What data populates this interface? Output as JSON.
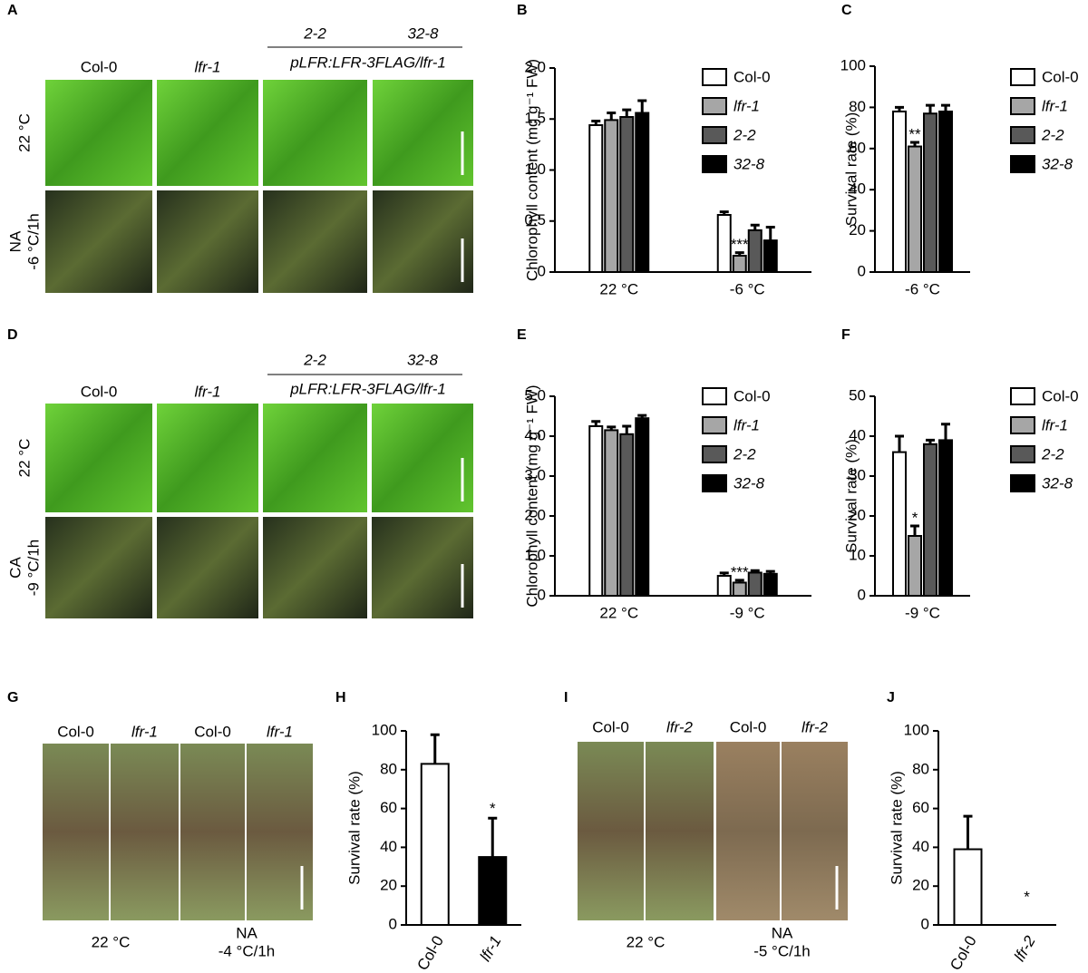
{
  "chart_data": [
    {
      "type": "bar",
      "panel": "B",
      "ylabel": "Chlorophyll content (mg g⁻¹ FW)",
      "categories": [
        "22 °C",
        "-6 °C"
      ],
      "series": [
        {
          "name": "Col-0",
          "color": "#ffffff",
          "values": [
            1.44,
            0.56
          ],
          "errors": [
            0.04,
            0.03
          ],
          "significance": [
            null,
            null
          ]
        },
        {
          "name": "lfr-1",
          "color": "#a6a6a6",
          "values": [
            1.49,
            0.16
          ],
          "errors": [
            0.07,
            0.03
          ],
          "significance": [
            null,
            "***"
          ]
        },
        {
          "name": "2-2",
          "color": "#595959",
          "values": [
            1.52,
            0.41
          ],
          "errors": [
            0.07,
            0.05
          ],
          "significance": [
            null,
            null
          ]
        },
        {
          "name": "32-8",
          "color": "#000000",
          "values": [
            1.56,
            0.31
          ],
          "errors": [
            0.12,
            0.13
          ],
          "significance": [
            null,
            null
          ]
        }
      ],
      "ylim": [
        0,
        2
      ],
      "yticks": [
        0,
        0.5,
        {
          "value": 1,
          "label": "1.0"
        },
        1.5,
        {
          "value": 2,
          "label": "2.0"
        }
      ]
    },
    {
      "type": "bar",
      "panel": "C",
      "ylabel": "Survival rate (%)",
      "categories": [
        "-6 °C"
      ],
      "series": [
        {
          "name": "Col-0",
          "color": "#ffffff",
          "values": [
            78
          ],
          "errors": [
            2
          ],
          "significance": [
            null
          ]
        },
        {
          "name": "lfr-1",
          "color": "#a6a6a6",
          "values": [
            61
          ],
          "errors": [
            2
          ],
          "significance": [
            "**"
          ]
        },
        {
          "name": "2-2",
          "color": "#595959",
          "values": [
            77
          ],
          "errors": [
            4
          ],
          "significance": [
            null
          ]
        },
        {
          "name": "32-8",
          "color": "#000000",
          "values": [
            78
          ],
          "errors": [
            3
          ],
          "significance": [
            null
          ]
        }
      ],
      "ylim": [
        0,
        100
      ],
      "yticks": [
        0,
        20,
        40,
        60,
        80,
        100
      ]
    },
    {
      "type": "bar",
      "panel": "E",
      "ylabel": "Chlorophyll content (mg g⁻¹ FW)",
      "categories": [
        "22 °C",
        "-9 °C"
      ],
      "series": [
        {
          "name": "Col-0",
          "color": "#ffffff",
          "values": [
            4.25,
            0.5
          ],
          "errors": [
            0.12,
            0.07
          ],
          "significance": [
            null,
            null
          ]
        },
        {
          "name": "lfr-1",
          "color": "#a6a6a6",
          "values": [
            4.15,
            0.33
          ],
          "errors": [
            0.08,
            0.06
          ],
          "significance": [
            null,
            "***"
          ]
        },
        {
          "name": "2-2",
          "color": "#595959",
          "values": [
            4.05,
            0.58
          ],
          "errors": [
            0.2,
            0.05
          ],
          "significance": [
            null,
            null
          ]
        },
        {
          "name": "32-8",
          "color": "#000000",
          "values": [
            4.45,
            0.55
          ],
          "errors": [
            0.07,
            0.06
          ],
          "significance": [
            null,
            null
          ]
        }
      ],
      "ylim": [
        0,
        5
      ],
      "yticks": [
        0,
        {
          "value": 1,
          "label": "1.0"
        },
        {
          "value": 2,
          "label": "2.0"
        },
        {
          "value": 3,
          "label": "3.0"
        },
        {
          "value": 4,
          "label": "4.0"
        },
        {
          "value": 5,
          "label": "5.0"
        }
      ]
    },
    {
      "type": "bar",
      "panel": "F",
      "ylabel": "Survival rate (%)",
      "categories": [
        "-9 °C"
      ],
      "series": [
        {
          "name": "Col-0",
          "color": "#ffffff",
          "values": [
            36
          ],
          "errors": [
            4
          ],
          "significance": [
            null
          ]
        },
        {
          "name": "lfr-1",
          "color": "#a6a6a6",
          "values": [
            15
          ],
          "errors": [
            2.5
          ],
          "significance": [
            "*"
          ]
        },
        {
          "name": "2-2",
          "color": "#595959",
          "values": [
            38
          ],
          "errors": [
            1
          ],
          "significance": [
            null
          ]
        },
        {
          "name": "32-8",
          "color": "#000000",
          "values": [
            39
          ],
          "errors": [
            4
          ],
          "significance": [
            null
          ]
        }
      ],
      "ylim": [
        0,
        50
      ],
      "yticks": [
        0,
        10,
        20,
        30,
        40,
        50
      ]
    },
    {
      "type": "bar",
      "panel": "H",
      "ylabel": "Survival rate (%)",
      "categories": [
        "Col-0",
        "lfr-1"
      ],
      "values": [
        83,
        35
      ],
      "errors": [
        15,
        20
      ],
      "colors": [
        "#ffffff",
        "#000000"
      ],
      "significance": [
        null,
        "*"
      ],
      "ylim": [
        0,
        100
      ],
      "yticks": [
        0,
        20,
        40,
        60,
        80,
        100
      ]
    },
    {
      "type": "bar",
      "panel": "J",
      "ylabel": "Survival rate (%)",
      "categories": [
        "Col-0",
        "lfr-2"
      ],
      "values": [
        39,
        0
      ],
      "errors": [
        17,
        0
      ],
      "colors": [
        "#ffffff",
        "#000000"
      ],
      "significance": [
        null,
        "*"
      ],
      "ylim": [
        0,
        100
      ],
      "yticks": [
        0,
        20,
        40,
        60,
        80,
        100
      ]
    }
  ],
  "photo_panels": [
    {
      "panel": "A",
      "columns": [
        "Col-0",
        "lfr-1",
        "2-2",
        "32-8"
      ],
      "group": "pLFR:LFR-3FLAG/lfr-1",
      "rows": [
        [
          "22 °C"
        ],
        [
          "NA",
          "-6 °C/1h"
        ]
      ]
    },
    {
      "panel": "D",
      "columns": [
        "Col-0",
        "lfr-1",
        "2-2",
        "32-8"
      ],
      "group": "pLFR:LFR-3FLAG/lfr-1",
      "rows": [
        [
          "22 °C"
        ],
        [
          "CA",
          "-9 °C/1h"
        ]
      ]
    },
    {
      "panel": "G",
      "columns": [
        "Col-0",
        "lfr-1",
        "Col-0",
        "lfr-1"
      ],
      "conditions": [
        [
          "22 °C"
        ],
        [
          "NA",
          "-4 °C/1h"
        ]
      ]
    },
    {
      "panel": "I",
      "columns": [
        "Col-0",
        "lfr-2",
        "Col-0",
        "lfr-2"
      ],
      "conditions": [
        [
          "22 °C"
        ],
        [
          "NA",
          "-5 °C/1h"
        ]
      ]
    }
  ]
}
